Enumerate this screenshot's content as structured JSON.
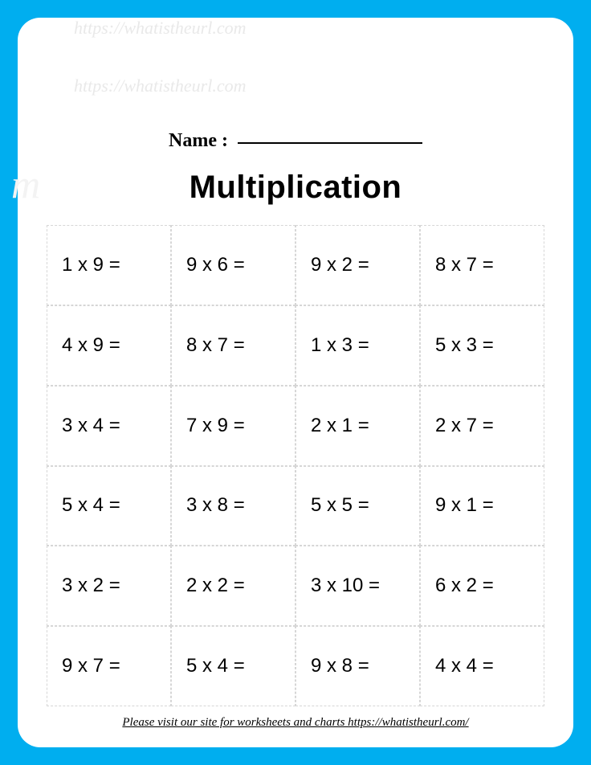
{
  "header": {
    "name_label": "Name :",
    "title": "Multiplication"
  },
  "watermarks": {
    "top": "https://whatistheurl.com",
    "bottom": "https://whatistheurl.com",
    "partial": "m"
  },
  "grid": {
    "columns": 4,
    "rows": 6,
    "border_color": "#d6d6d6",
    "cell_fontsize": 24,
    "problems": [
      "1 x 9 =",
      "9 x 6 =",
      "9 x 2 =",
      "8 x 7 =",
      "4 x 9 =",
      "8 x 7 =",
      "1 x 3 =",
      "5 x 3 =",
      "3 x 4 =",
      "7 x 9 =",
      "2 x 1 =",
      "2 x 7 =",
      "5 x 4 =",
      "3 x 8 =",
      "5 x 5 =",
      "9 x 1 =",
      "3 x 2 =",
      "2 x 2 =",
      "3 x 10 =",
      "6 x 2 =",
      "9 x 7 =",
      "5 x 4 =",
      "9 x 8 =",
      "4 x 4 ="
    ]
  },
  "footer": {
    "text": "Please visit our site for worksheets and charts https://whatistheurl.com/"
  },
  "colors": {
    "page_bg": "#ffffff",
    "outer_bg": "#00aeef",
    "text": "#000000",
    "watermark": "#e9e9e9"
  }
}
